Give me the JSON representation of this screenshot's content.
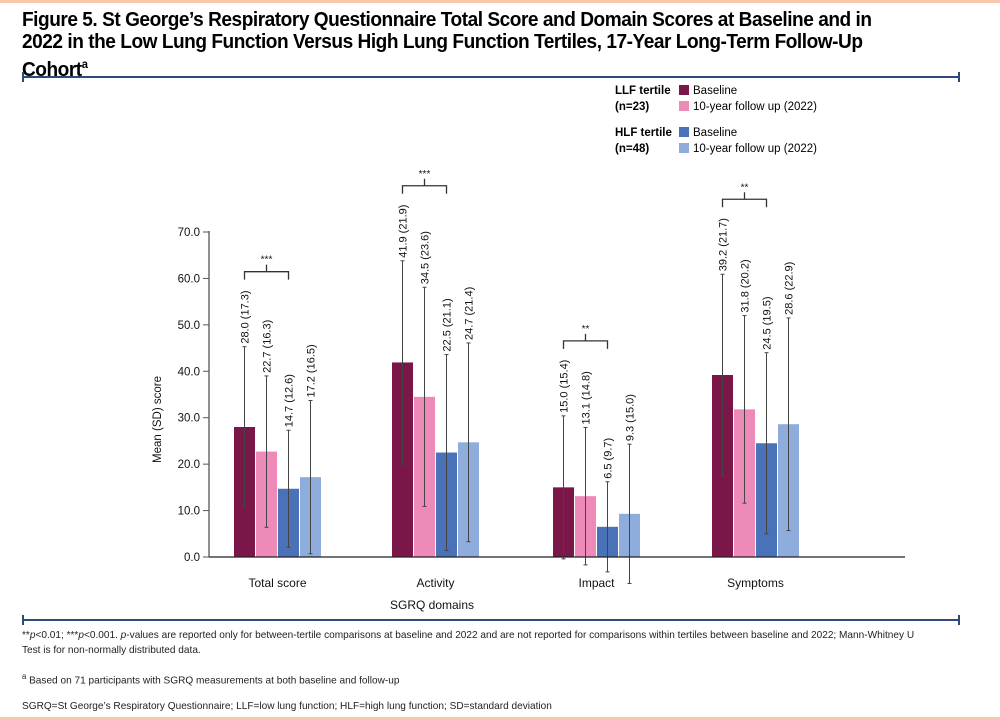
{
  "figure": {
    "title": "Figure 5. St George’s Respiratory Questionnaire Total Score and Domain Scores at Baseline and in 2022 in the Low Lung Function Versus High Lung Function Tertiles, 17-Year Long-Term Follow-Up Cohort",
    "title_superscript": "a"
  },
  "legend": {
    "groups": [
      {
        "name": "LLF tertile",
        "n": "(n=23)",
        "items": [
          {
            "label": "Baseline",
            "color": "#7b1648"
          },
          {
            "label": "10-year follow up (2022)",
            "color": "#ee8ab8"
          }
        ]
      },
      {
        "name": "HLF tertile",
        "n": "(n=48)",
        "items": [
          {
            "label": "Baseline",
            "color": "#4a72b8"
          },
          {
            "label": "10-year follow up (2022)",
            "color": "#8eaddc"
          }
        ]
      }
    ]
  },
  "chart_data": {
    "type": "bar",
    "title": "",
    "xlabel": "SGRQ domains",
    "ylabel": "Mean (SD) score",
    "ylim": [
      0,
      70
    ],
    "yticks": [
      "0.0",
      "10.0",
      "20.0",
      "30.0",
      "40.0",
      "50.0",
      "60.0",
      "70.0"
    ],
    "grid": false,
    "legend_position": "top-right",
    "categories": [
      "Total score",
      "Activity",
      "Impact",
      "Symptoms"
    ],
    "series": [
      {
        "name": "LLF tertile Baseline",
        "color": "#7b1648",
        "values": [
          28.0,
          41.9,
          15.0,
          39.2
        ],
        "sd": [
          17.3,
          21.9,
          15.4,
          21.7
        ]
      },
      {
        "name": "LLF tertile 10-year follow up (2022)",
        "color": "#ee8ab8",
        "values": [
          22.7,
          34.5,
          13.1,
          31.8
        ],
        "sd": [
          16.3,
          23.6,
          14.8,
          20.2
        ]
      },
      {
        "name": "HLF tertile Baseline",
        "color": "#4a72b8",
        "values": [
          14.7,
          22.5,
          6.5,
          24.5
        ],
        "sd": [
          12.6,
          21.1,
          9.7,
          19.5
        ]
      },
      {
        "name": "HLF tertile 10-year follow up (2022)",
        "color": "#8eaddc",
        "values": [
          17.2,
          24.7,
          9.3,
          28.6
        ],
        "sd": [
          16.5,
          21.4,
          15.0,
          22.9
        ]
      }
    ],
    "data_labels": [
      [
        "28.0 (17.3)",
        "41.9 (21.9)",
        "15.0 (15.4)",
        "39.2 (21.7)"
      ],
      [
        "22.7 (16.3)",
        "34.5 (23.6)",
        "13.1 (14.8)",
        "31.8 (20.2)"
      ],
      [
        "14.7 (12.6)",
        "22.5 (21.1)",
        "6.5 (9.7)",
        "24.5 (19.5)"
      ],
      [
        "17.2 (16.5)",
        "24.7 (21.4)",
        "9.3 (15.0)",
        "28.6 (22.9)"
      ]
    ],
    "significance": [
      "***",
      "***",
      "**",
      "**"
    ]
  },
  "footnotes": {
    "p_line_1_a": "**",
    "p_line_1_b": "p",
    "p_line_1_c": "<0.01; ***",
    "p_line_1_d": "p",
    "p_line_1_e": "<0.001. ",
    "p_line_1_f": "p",
    "p_line_1_g": "-values are reported only for between-tertile comparisons at baseline and 2022 and are not reported for comparisons within tertiles between baseline and 2022; Mann-Whitney U Test is for non-normally distributed data.",
    "a_marker": "a",
    "a_text": " Based on 71 participants with SGRQ measurements at both baseline and follow-up",
    "abbreviations": "SGRQ=St George’s Respiratory Questionnaire; LLF=low lung function; HLF=high lung function; SD=standard deviation"
  }
}
